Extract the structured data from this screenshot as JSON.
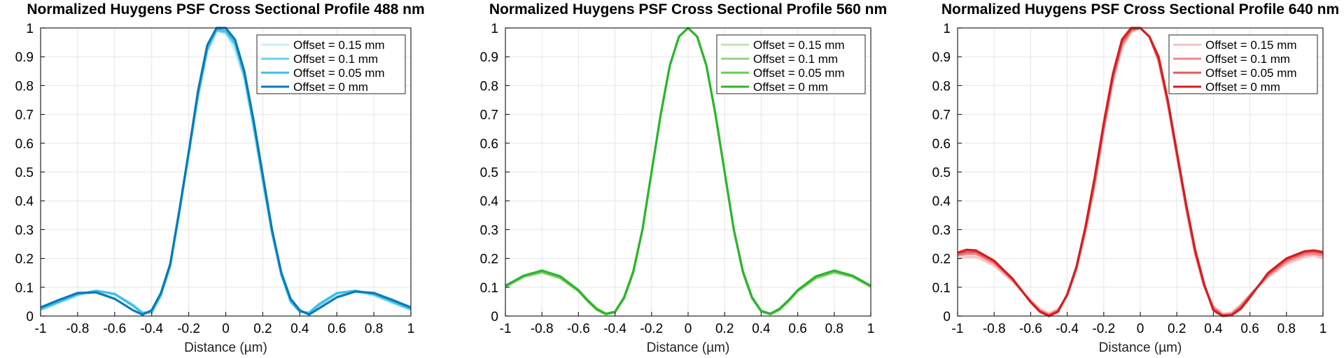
{
  "chart_data": [
    {
      "type": "line",
      "title": "Normalized Huygens PSF Cross Sectional Profile 488 nm",
      "xlabel": "Distance (µm)",
      "ylabel": "",
      "xlim": [
        -1,
        1
      ],
      "ylim": [
        0,
        1
      ],
      "xticks": [
        "-1",
        "-0.8",
        "-0.6",
        "-0.4",
        "-0.2",
        "0",
        "0.2",
        "0.4",
        "0.6",
        "0.8",
        "1"
      ],
      "yticks": [
        "0",
        "0.1",
        "0.2",
        "0.3",
        "0.4",
        "0.5",
        "0.6",
        "0.7",
        "0.8",
        "0.9",
        "1"
      ],
      "grid": true,
      "legend": "top-right",
      "x": [
        -1.0,
        -0.9,
        -0.8,
        -0.7,
        -0.6,
        -0.5,
        -0.45,
        -0.4,
        -0.35,
        -0.3,
        -0.25,
        -0.2,
        -0.15,
        -0.1,
        -0.05,
        0.0,
        0.05,
        0.1,
        0.15,
        0.2,
        0.25,
        0.3,
        0.35,
        0.4,
        0.45,
        0.5,
        0.6,
        0.7,
        0.8,
        0.9,
        1.0
      ],
      "series": [
        {
          "name": "Offset = 0.15 mm",
          "color": "#cdeef8",
          "values": [
            0.02,
            0.045,
            0.07,
            0.085,
            0.075,
            0.04,
            0.015,
            0.01,
            0.07,
            0.17,
            0.36,
            0.56,
            0.76,
            0.92,
            0.99,
            0.98,
            0.92,
            0.82,
            0.65,
            0.46,
            0.28,
            0.14,
            0.05,
            0.015,
            0.01,
            0.035,
            0.075,
            0.085,
            0.07,
            0.045,
            0.02
          ]
        },
        {
          "name": "Offset = 0.1 mm",
          "color": "#67d4f0",
          "values": [
            0.022,
            0.048,
            0.074,
            0.088,
            0.078,
            0.038,
            0.012,
            0.012,
            0.072,
            0.172,
            0.36,
            0.56,
            0.76,
            0.92,
            0.99,
            0.985,
            0.94,
            0.83,
            0.66,
            0.47,
            0.29,
            0.14,
            0.05,
            0.015,
            0.01,
            0.035,
            0.078,
            0.088,
            0.074,
            0.048,
            0.022
          ]
        },
        {
          "name": "Offset = 0.05 mm",
          "color": "#3fbde8",
          "values": [
            0.025,
            0.05,
            0.076,
            0.088,
            0.076,
            0.035,
            0.01,
            0.015,
            0.075,
            0.175,
            0.37,
            0.57,
            0.77,
            0.93,
            0.995,
            0.99,
            0.95,
            0.84,
            0.67,
            0.48,
            0.29,
            0.15,
            0.05,
            0.015,
            0.012,
            0.04,
            0.08,
            0.088,
            0.076,
            0.05,
            0.025
          ]
        },
        {
          "name": "Offset = 0 mm",
          "color": "#0a79b8",
          "values": [
            0.03,
            0.056,
            0.08,
            0.082,
            0.06,
            0.02,
            0.005,
            0.02,
            0.08,
            0.18,
            0.37,
            0.57,
            0.78,
            0.94,
            1.0,
            1.0,
            0.96,
            0.85,
            0.68,
            0.49,
            0.3,
            0.15,
            0.06,
            0.02,
            0.005,
            0.025,
            0.065,
            0.085,
            0.08,
            0.056,
            0.03
          ]
        }
      ]
    },
    {
      "type": "line",
      "title": "Normalized Huygens PSF Cross Sectional Profile 560 nm",
      "xlabel": "Distance (µm)",
      "ylabel": "",
      "xlim": [
        -1,
        1
      ],
      "ylim": [
        0,
        1
      ],
      "xticks": [
        "-1",
        "-0.8",
        "-0.6",
        "-0.4",
        "-0.2",
        "0",
        "0.2",
        "0.4",
        "0.6",
        "0.8",
        "1"
      ],
      "yticks": [
        "0",
        "0.1",
        "0.2",
        "0.3",
        "0.4",
        "0.5",
        "0.6",
        "0.7",
        "0.8",
        "0.9",
        "1"
      ],
      "grid": true,
      "legend": "top-right",
      "x": [
        -1.0,
        -0.9,
        -0.8,
        -0.7,
        -0.6,
        -0.55,
        -0.5,
        -0.45,
        -0.4,
        -0.35,
        -0.3,
        -0.25,
        -0.2,
        -0.15,
        -0.1,
        -0.05,
        0.0,
        0.05,
        0.1,
        0.15,
        0.2,
        0.25,
        0.3,
        0.35,
        0.4,
        0.45,
        0.5,
        0.55,
        0.6,
        0.7,
        0.8,
        0.9,
        1.0
      ],
      "series": [
        {
          "name": "Offset = 0.15 mm",
          "color": "#bfe3b3",
          "values": [
            0.1,
            0.135,
            0.15,
            0.13,
            0.085,
            0.05,
            0.02,
            0.005,
            0.012,
            0.06,
            0.15,
            0.3,
            0.5,
            0.7,
            0.87,
            0.97,
            1.0,
            0.97,
            0.87,
            0.7,
            0.5,
            0.3,
            0.15,
            0.06,
            0.015,
            0.005,
            0.02,
            0.05,
            0.085,
            0.13,
            0.15,
            0.135,
            0.1
          ]
        },
        {
          "name": "Offset = 0.1 mm",
          "color": "#90d27c",
          "values": [
            0.102,
            0.137,
            0.152,
            0.132,
            0.087,
            0.052,
            0.022,
            0.006,
            0.013,
            0.062,
            0.152,
            0.3,
            0.5,
            0.7,
            0.87,
            0.97,
            1.0,
            0.97,
            0.87,
            0.7,
            0.5,
            0.3,
            0.152,
            0.062,
            0.016,
            0.006,
            0.022,
            0.052,
            0.087,
            0.132,
            0.152,
            0.137,
            0.102
          ]
        },
        {
          "name": "Offset = 0.05 mm",
          "color": "#6cc856",
          "values": [
            0.104,
            0.139,
            0.155,
            0.135,
            0.088,
            0.053,
            0.023,
            0.007,
            0.014,
            0.063,
            0.153,
            0.3,
            0.5,
            0.7,
            0.87,
            0.97,
            1.0,
            0.97,
            0.87,
            0.7,
            0.5,
            0.3,
            0.153,
            0.063,
            0.017,
            0.007,
            0.023,
            0.053,
            0.088,
            0.135,
            0.155,
            0.139,
            0.104
          ]
        },
        {
          "name": "Offset = 0 mm",
          "color": "#2db52d",
          "values": [
            0.105,
            0.14,
            0.158,
            0.138,
            0.09,
            0.055,
            0.025,
            0.008,
            0.015,
            0.065,
            0.155,
            0.3,
            0.5,
            0.7,
            0.87,
            0.97,
            1.0,
            0.97,
            0.87,
            0.7,
            0.5,
            0.3,
            0.155,
            0.065,
            0.018,
            0.008,
            0.025,
            0.055,
            0.09,
            0.138,
            0.158,
            0.14,
            0.105
          ]
        }
      ]
    },
    {
      "type": "line",
      "title": "Normalized Huygens PSF Cross Sectional Profile 640 nm",
      "xlabel": "Distance (µm)",
      "ylabel": "",
      "xlim": [
        -1,
        1
      ],
      "ylim": [
        0,
        1
      ],
      "xticks": [
        "-1",
        "-0.8",
        "-0.6",
        "-0.4",
        "-0.2",
        "0",
        "0.2",
        "0.4",
        "0.6",
        "0.8",
        "1"
      ],
      "yticks": [
        "0",
        "0.1",
        "0.2",
        "0.3",
        "0.4",
        "0.5",
        "0.6",
        "0.7",
        "0.8",
        "0.9",
        "1"
      ],
      "grid": true,
      "legend": "top-right",
      "x": [
        -1.0,
        -0.95,
        -0.9,
        -0.8,
        -0.7,
        -0.6,
        -0.55,
        -0.5,
        -0.45,
        -0.4,
        -0.35,
        -0.3,
        -0.25,
        -0.2,
        -0.15,
        -0.1,
        -0.05,
        0.0,
        0.05,
        0.1,
        0.15,
        0.2,
        0.25,
        0.3,
        0.35,
        0.4,
        0.45,
        0.5,
        0.55,
        0.6,
        0.7,
        0.8,
        0.9,
        0.95,
        1.0
      ],
      "series": [
        {
          "name": "Offset = 0.15 mm",
          "color": "#f6c2c6",
          "values": [
            0.2,
            0.205,
            0.205,
            0.175,
            0.12,
            0.055,
            0.025,
            0.01,
            0.025,
            0.07,
            0.16,
            0.29,
            0.45,
            0.64,
            0.81,
            0.93,
            0.985,
            1.0,
            0.97,
            0.88,
            0.73,
            0.55,
            0.37,
            0.21,
            0.1,
            0.035,
            0.008,
            0.012,
            0.04,
            0.075,
            0.135,
            0.18,
            0.205,
            0.21,
            0.2
          ]
        },
        {
          "name": "Offset = 0.1 mm",
          "color": "#ee8a8e",
          "values": [
            0.21,
            0.215,
            0.215,
            0.183,
            0.125,
            0.052,
            0.02,
            0.005,
            0.02,
            0.072,
            0.165,
            0.3,
            0.46,
            0.65,
            0.82,
            0.94,
            0.99,
            1.0,
            0.97,
            0.89,
            0.74,
            0.56,
            0.38,
            0.22,
            0.105,
            0.03,
            0.005,
            0.008,
            0.035,
            0.072,
            0.14,
            0.188,
            0.213,
            0.215,
            0.21
          ]
        },
        {
          "name": "Offset = 0.05 mm",
          "color": "#e25a60",
          "values": [
            0.215,
            0.222,
            0.222,
            0.188,
            0.128,
            0.05,
            0.018,
            0.003,
            0.018,
            0.073,
            0.168,
            0.305,
            0.47,
            0.66,
            0.83,
            0.95,
            0.995,
            1.0,
            0.97,
            0.89,
            0.745,
            0.565,
            0.385,
            0.225,
            0.105,
            0.025,
            0.003,
            0.005,
            0.03,
            0.07,
            0.145,
            0.195,
            0.22,
            0.223,
            0.217
          ]
        },
        {
          "name": "Offset = 0 mm",
          "color": "#d41e1e",
          "values": [
            0.22,
            0.23,
            0.228,
            0.192,
            0.13,
            0.048,
            0.015,
            0.0,
            0.015,
            0.075,
            0.17,
            0.31,
            0.48,
            0.67,
            0.84,
            0.96,
            1.0,
            1.0,
            0.97,
            0.9,
            0.75,
            0.57,
            0.39,
            0.23,
            0.11,
            0.02,
            0.0,
            0.003,
            0.025,
            0.065,
            0.15,
            0.2,
            0.225,
            0.228,
            0.222
          ]
        }
      ]
    }
  ]
}
